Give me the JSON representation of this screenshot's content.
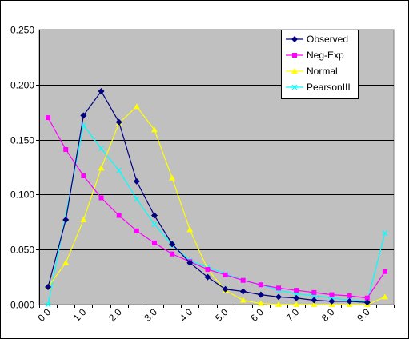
{
  "chart_data": {
    "type": "line",
    "title": "",
    "xlabel": "",
    "ylabel": "",
    "x": [
      0.25,
      0.75,
      1.25,
      1.75,
      2.25,
      2.75,
      3.25,
      3.75,
      4.25,
      4.75,
      5.25,
      5.75,
      6.25,
      6.75,
      7.25,
      7.75,
      8.25,
      8.75,
      9.25,
      9.75
    ],
    "xlim": [
      0,
      10
    ],
    "ylim": [
      0,
      0.25
    ],
    "x_ticks": [
      "0.0",
      "1.0",
      "2.0",
      "3.0",
      "4.0",
      "5.0",
      "6.0",
      "7.0",
      "8.0",
      "9.0"
    ],
    "x_tick_values": [
      0.25,
      1.25,
      2.25,
      3.25,
      4.25,
      5.25,
      6.25,
      7.25,
      8.25,
      9.25
    ],
    "y_ticks": [
      "0.000",
      "0.050",
      "0.100",
      "0.150",
      "0.200",
      "0.250"
    ],
    "y_tick_values": [
      0,
      0.05,
      0.1,
      0.15,
      0.2,
      0.25
    ],
    "grid": "horizontal",
    "plot_background": "#c0c0c0",
    "legend_position": "top-right",
    "series": [
      {
        "name": "Observed",
        "color": "#000080",
        "marker": "diamond",
        "values": [
          0.016,
          0.077,
          0.172,
          0.194,
          0.166,
          0.112,
          0.081,
          0.055,
          0.038,
          0.025,
          0.014,
          0.012,
          0.009,
          0.007,
          0.006,
          0.004,
          0.003,
          0.003,
          0.002,
          null
        ]
      },
      {
        "name": "Neg-Exp",
        "color": "#ff00ff",
        "marker": "square",
        "values": [
          0.17,
          0.141,
          0.117,
          0.097,
          0.081,
          0.067,
          0.056,
          0.046,
          0.039,
          0.032,
          0.027,
          0.022,
          0.018,
          0.015,
          0.013,
          0.011,
          0.009,
          0.008,
          0.006,
          0.03
        ]
      },
      {
        "name": "Normal",
        "color": "#ffff00",
        "marker": "triangle",
        "values": [
          0.016,
          0.038,
          0.077,
          0.124,
          0.165,
          0.18,
          0.159,
          0.115,
          0.068,
          0.032,
          0.013,
          0.004,
          0.001,
          0.0,
          0.0,
          0.0,
          0.0,
          0.0,
          0.0,
          0.007
        ]
      },
      {
        "name": "PearsonIII",
        "color": "#00ffff",
        "marker": "x",
        "values": [
          0.0,
          null,
          0.163,
          0.142,
          0.122,
          0.096,
          0.073,
          0.054,
          0.04,
          0.034,
          0.028,
          0.022,
          0.018,
          0.013,
          0.01,
          0.008,
          0.006,
          0.004,
          0.003,
          0.065
        ]
      }
    ]
  }
}
